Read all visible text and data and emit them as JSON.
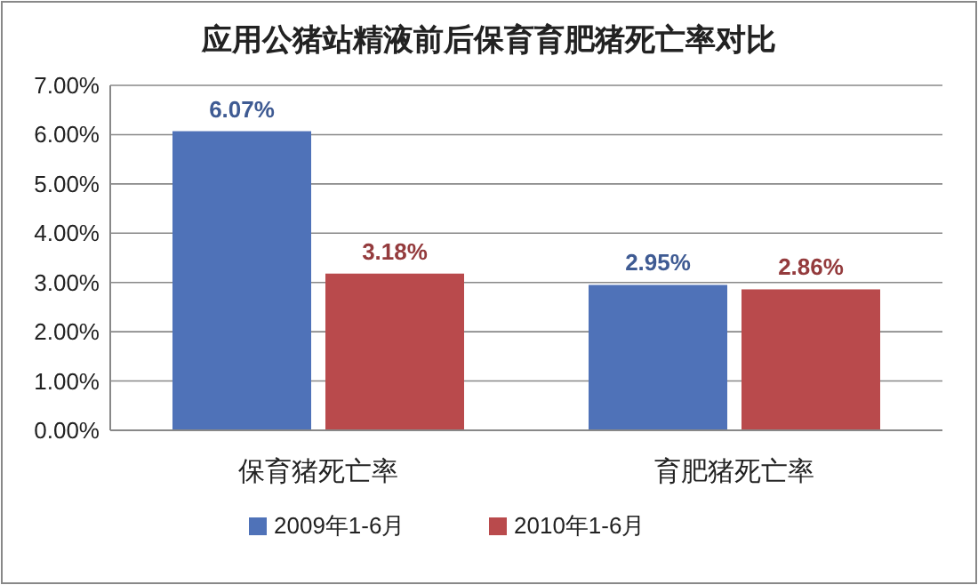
{
  "chart_data": {
    "type": "bar",
    "title": "应用公猪站精液前后保育育肥猪死亡率对比",
    "categories": [
      "保育猪死亡率",
      "育肥猪死亡率"
    ],
    "series": [
      {
        "name": "2009年1-6月",
        "color": "#4f72b8",
        "values": [
          6.07,
          2.95
        ],
        "value_labels": [
          "6.07%",
          "2.95%"
        ]
      },
      {
        "name": "2010年1-6月",
        "color": "#b94a4c",
        "values": [
          3.18,
          2.86
        ],
        "value_labels": [
          "3.18%",
          "2.86%"
        ]
      }
    ],
    "ylim": [
      0,
      7
    ],
    "yticks": [
      {
        "value": 0,
        "label": "0.00%"
      },
      {
        "value": 1,
        "label": "1.00%"
      },
      {
        "value": 2,
        "label": "2.00%"
      },
      {
        "value": 3,
        "label": "3.00%"
      },
      {
        "value": 4,
        "label": "4.00%"
      },
      {
        "value": 5,
        "label": "5.00%"
      },
      {
        "value": 6,
        "label": "6.00%"
      },
      {
        "value": 7,
        "label": "7.00%"
      }
    ],
    "grid": "y",
    "legend": "bottom"
  }
}
